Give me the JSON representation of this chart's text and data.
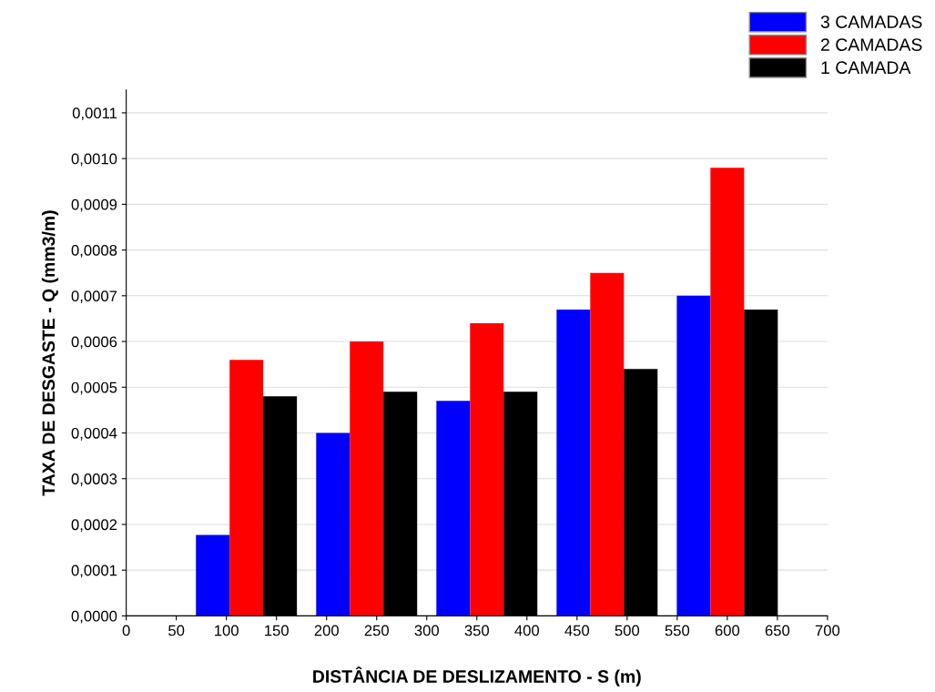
{
  "chart_data": {
    "type": "bar",
    "xlabel": "DISTÂNCIA DE DESLIZAMENTO - S (m)",
    "ylabel": "TAXA DE DESGASTE - Q (mm3/m)",
    "x": [
      120,
      240,
      360,
      480,
      600
    ],
    "series": [
      {
        "name": "3 CAMADAS",
        "color": "#0000ff",
        "values": [
          0.000177,
          0.0004,
          0.00047,
          0.00067,
          0.0007
        ]
      },
      {
        "name": "2 CAMADAS",
        "color": "#ff0000",
        "values": [
          0.00056,
          0.0006,
          0.00064,
          0.00075,
          0.00098
        ]
      },
      {
        "name": "1 CAMADA",
        "color": "#000000",
        "values": [
          0.00048,
          0.00049,
          0.00049,
          0.00054,
          0.00067
        ]
      }
    ],
    "xlim": [
      0,
      700
    ],
    "xticks": [
      0,
      50,
      100,
      150,
      200,
      250,
      300,
      350,
      400,
      450,
      500,
      550,
      600,
      650,
      700
    ],
    "ylim": [
      0,
      0.00115
    ],
    "yticks": [
      {
        "value": 0,
        "label": "0,0000"
      },
      {
        "value": 0.0001,
        "label": "0,0001"
      },
      {
        "value": 0.0002,
        "label": "0,0002"
      },
      {
        "value": 0.0003,
        "label": "0,0003"
      },
      {
        "value": 0.0004,
        "label": "0,0004"
      },
      {
        "value": 0.0005,
        "label": "0,0005"
      },
      {
        "value": 0.0006,
        "label": "0,0006"
      },
      {
        "value": 0.0007,
        "label": "0,0007"
      },
      {
        "value": 0.0008,
        "label": "0,0008"
      },
      {
        "value": 0.0009,
        "label": "0,0009"
      },
      {
        "value": 0.001,
        "label": "0,0010"
      },
      {
        "value": 0.0011,
        "label": "0,0011"
      }
    ],
    "grid": "y",
    "legend": "top right"
  }
}
